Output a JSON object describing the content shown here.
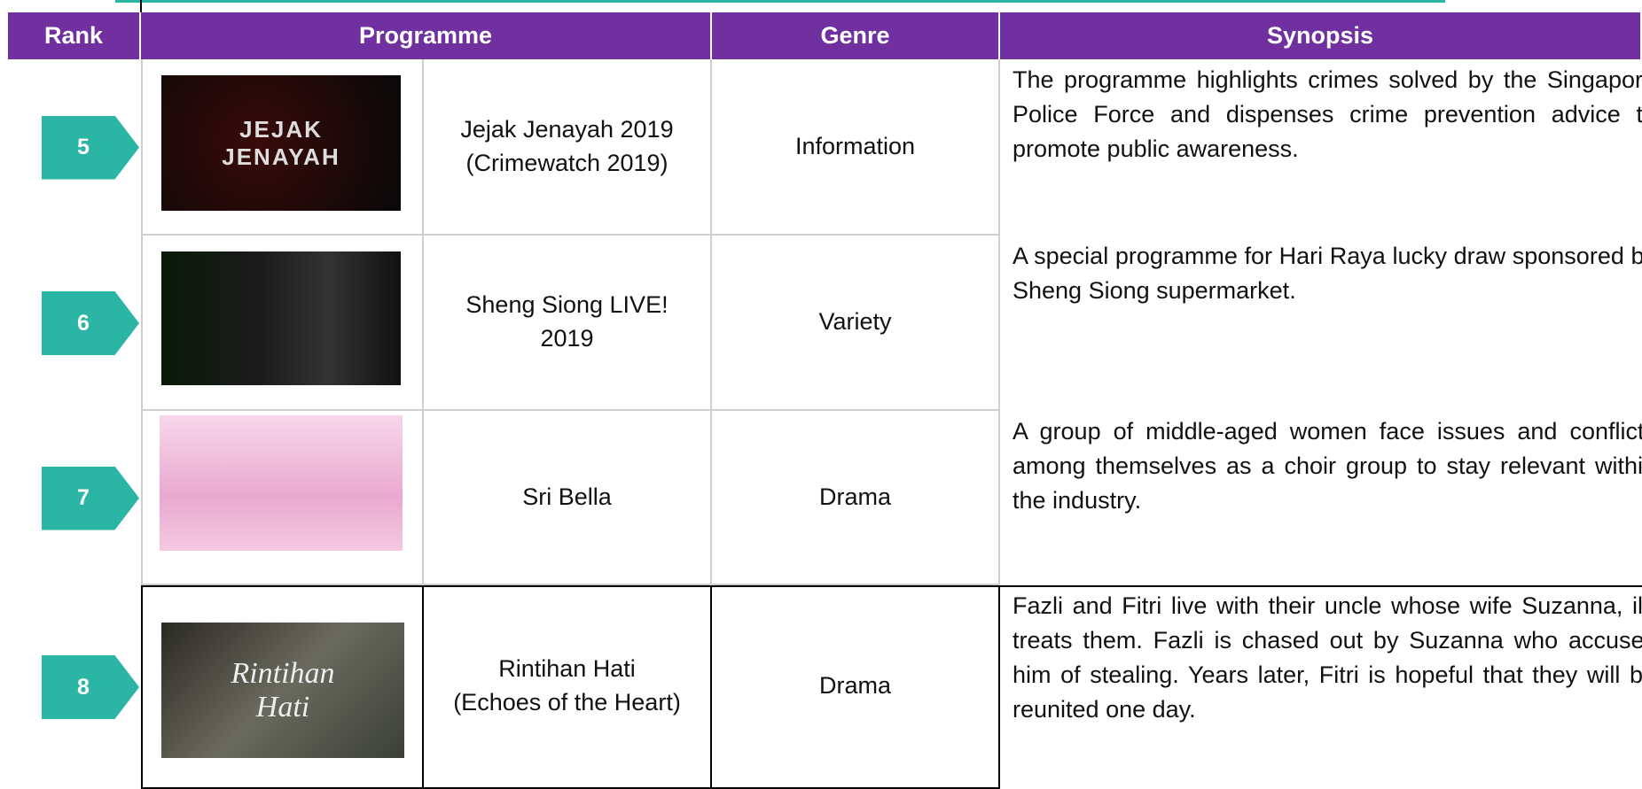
{
  "header": {
    "columns": [
      "Rank",
      "Programme",
      "Genre",
      "Synopsis"
    ]
  },
  "table": {
    "rows": [
      {
        "rank": "5",
        "thumbnail_text": "JEJAK\nJENAYAH",
        "programme": "Jejak Jenayah 2019\n(Crimewatch 2019)",
        "genre": "Information",
        "synopsis": "The programme highlights crimes solved by the Singapore Police Force and dispenses crime prevention advice to promote public awareness."
      },
      {
        "rank": "6",
        "programme": "Sheng Siong LIVE!\n2019",
        "genre": "Variety",
        "synopsis": "A special programme for Hari Raya lucky draw sponsored by Sheng Siong supermarket."
      },
      {
        "rank": "7",
        "programme": "Sri Bella",
        "genre": "Drama",
        "synopsis": "A group of middle-aged women face issues and conflicts among themselves as a choir group to stay relevant within the industry."
      },
      {
        "rank": "8",
        "thumbnail_text": "Rintihan\nHati",
        "programme": "Rintihan Hati\n(Echoes of the Heart)",
        "genre": "Drama",
        "synopsis": "Fazli and Fitri live with their uncle whose wife Suzanna, ill-treats them. Fazli is chased out by Suzanna who accuses him of stealing. Years later, Fitri is hopeful that they will be reunited one day."
      }
    ]
  }
}
